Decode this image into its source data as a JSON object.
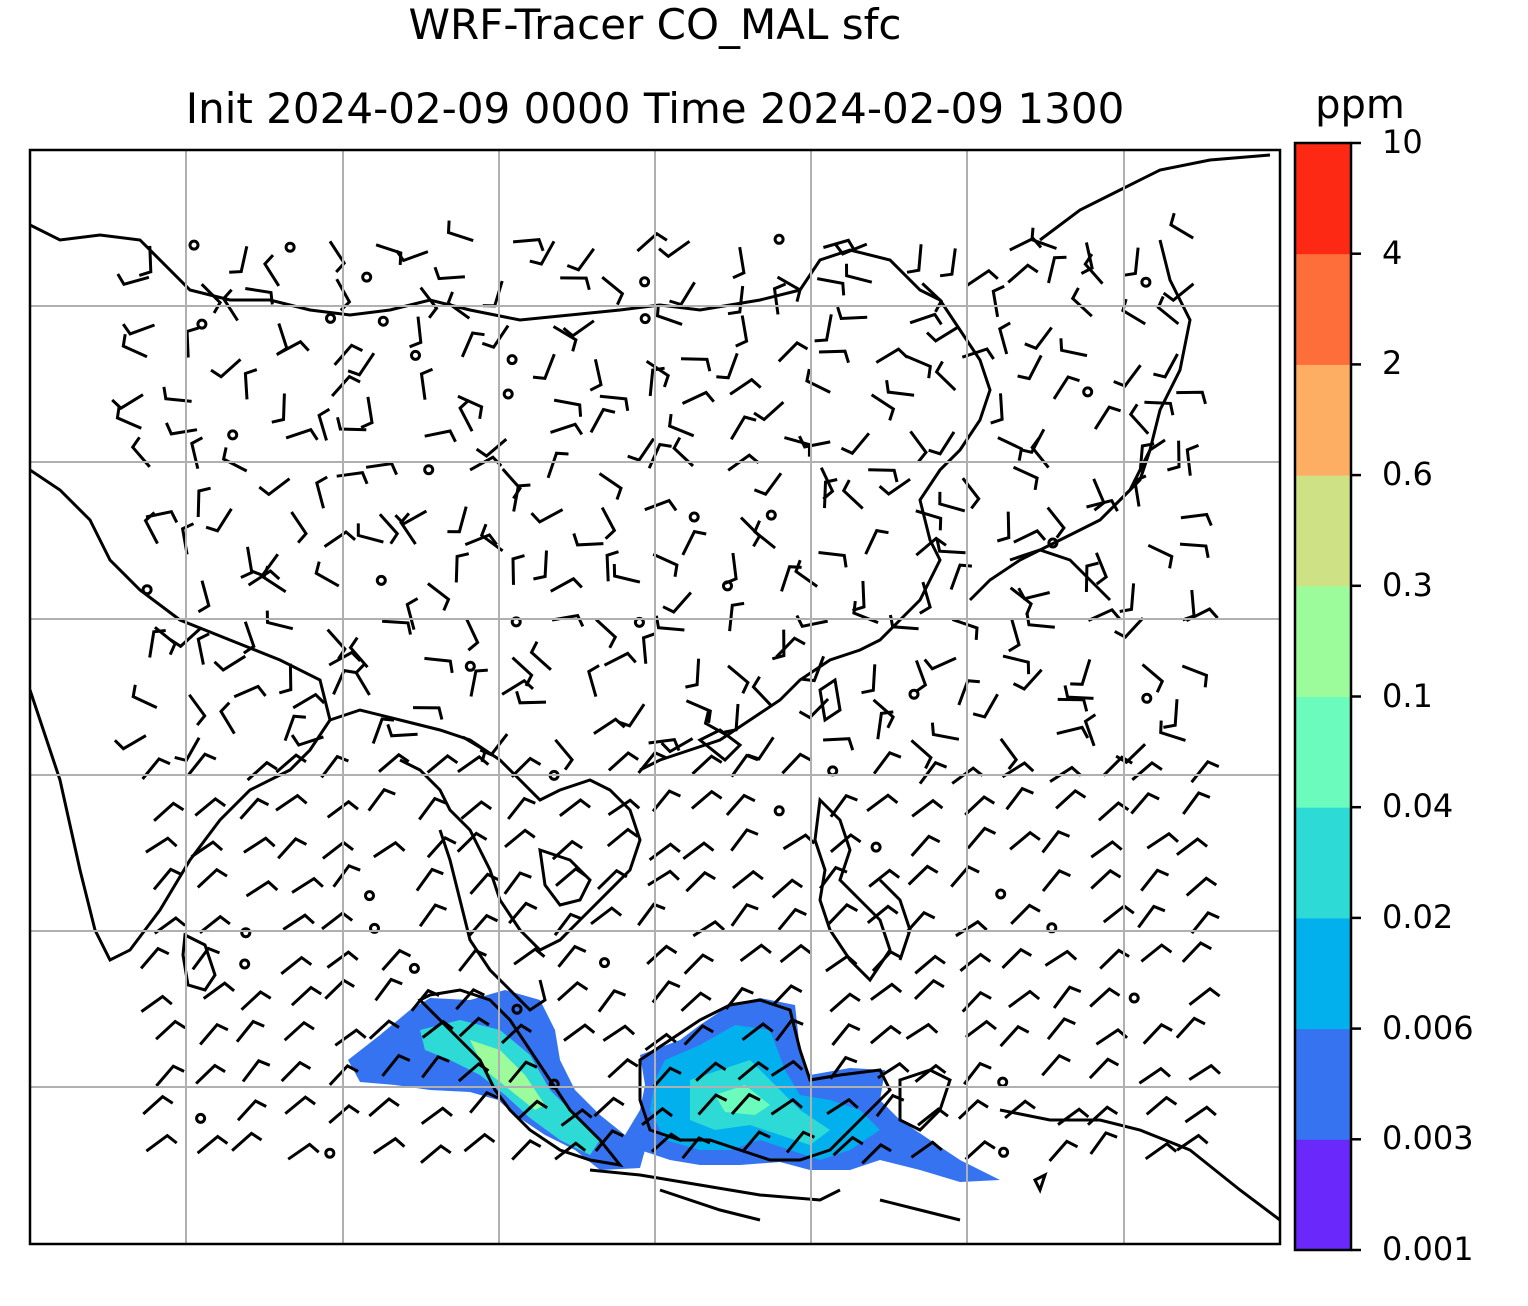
{
  "title_line1": "WRF-Tracer CO_MAL sfc",
  "title_line2": "Init 2024-02-09 0000 Time 2024-02-09 1300",
  "colorbar": {
    "unit": "ppm",
    "ticks": [
      "0.001",
      "0.003",
      "0.006",
      "0.02",
      "0.04",
      "0.1",
      "0.3",
      "0.6",
      "2",
      "4",
      "10"
    ],
    "colors": [
      "#6a28fa",
      "#3673f0",
      "#02b0ee",
      "#2edad6",
      "#6afbbd",
      "#9cfb9b",
      "#cfe185",
      "#feae62",
      "#fd6e3b",
      "#fd2915"
    ]
  },
  "map": {
    "gridlines": "on",
    "coastline_color": "#000000",
    "grid_color": "#b0b0b0",
    "field_name": "CO_MAL sfc",
    "field_region": "Sumatra / Malay Peninsula / Borneo",
    "wind_barbs": "on"
  }
}
